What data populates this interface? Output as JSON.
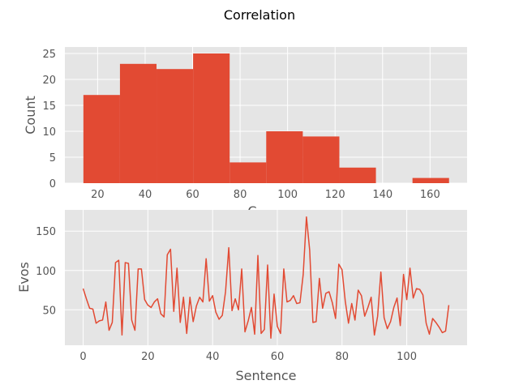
{
  "chart_data": [
    {
      "type": "bar",
      "title": "Correlation",
      "xlabel": "C",
      "ylabel": "Count",
      "xlim": [
        6.2,
        175.6
      ],
      "ylim": [
        0,
        26.25
      ],
      "grid": true,
      "color": "#E24A33",
      "background": "#E5E5E5",
      "xticks": [
        20,
        40,
        60,
        80,
        100,
        120,
        140,
        160
      ],
      "yticks": [
        0,
        5,
        10,
        15,
        20,
        25
      ],
      "bins": [
        {
          "start": 14,
          "end": 29.4,
          "value": 17
        },
        {
          "start": 29.4,
          "end": 44.8,
          "value": 23
        },
        {
          "start": 44.8,
          "end": 60.2,
          "value": 22
        },
        {
          "start": 60.2,
          "end": 75.6,
          "value": 25
        },
        {
          "start": 75.6,
          "end": 91.0,
          "value": 4
        },
        {
          "start": 91.0,
          "end": 106.4,
          "value": 10
        },
        {
          "start": 106.4,
          "end": 121.8,
          "value": 9
        },
        {
          "start": 121.8,
          "end": 137.2,
          "value": 3
        },
        {
          "start": 137.2,
          "end": 152.6,
          "value": 0
        },
        {
          "start": 152.6,
          "end": 168.0,
          "value": 1
        }
      ]
    },
    {
      "type": "line",
      "xlabel": "Sentence",
      "ylabel": "Evos",
      "xlim": [
        -5.65,
        118.65
      ],
      "ylim": [
        5,
        177
      ],
      "grid": true,
      "color": "#E24A33",
      "background": "#E5E5E5",
      "xticks": [
        0,
        20,
        40,
        60,
        80,
        100
      ],
      "yticks": [
        50,
        100,
        150
      ],
      "series": [
        {
          "values": [
            77,
            64,
            52,
            51,
            33,
            36,
            37,
            60,
            24,
            34,
            110,
            113,
            18,
            110,
            109,
            37,
            24,
            102,
            102,
            63,
            56,
            53,
            60,
            64,
            45,
            41,
            120,
            127,
            48,
            103,
            34,
            66,
            20,
            66,
            35,
            55,
            66,
            60,
            115,
            61,
            68,
            47,
            38,
            43,
            73,
            129,
            49,
            64,
            50,
            102,
            22,
            36,
            53,
            19,
            119,
            20,
            25,
            107,
            14,
            70,
            29,
            20,
            102,
            60,
            62,
            68,
            58,
            59,
            95,
            168,
            126,
            34,
            35,
            90,
            52,
            71,
            73,
            59,
            39,
            108,
            101,
            61,
            33,
            58,
            37,
            75,
            68,
            42,
            53,
            66,
            18,
            42,
            98,
            40,
            26,
            35,
            53,
            65,
            30,
            95,
            63,
            103,
            65,
            77,
            76,
            69,
            33,
            19,
            39,
            34,
            28,
            21,
            23,
            56
          ]
        }
      ]
    }
  ]
}
